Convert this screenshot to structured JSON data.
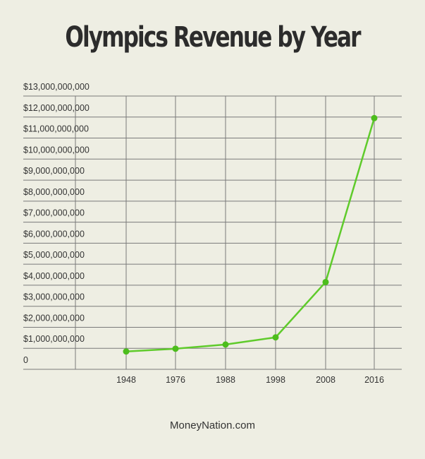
{
  "chart_data": {
    "type": "line",
    "title": "Olympics Revenue by Year",
    "xlabel": "",
    "ylabel": "",
    "categories": [
      "1948",
      "1976",
      "1988",
      "1998",
      "2008",
      "2016"
    ],
    "series": [
      {
        "values": [
          850000000,
          980000000,
          1180000000,
          1520000000,
          4150000000,
          11950000000
        ]
      }
    ],
    "ylim": [
      0,
      13000000000
    ],
    "yticks": [
      "0",
      "$1,000,000,000",
      "$2,000,000,000",
      "$3,000,000,000",
      "$4,000,000,000",
      "$5,000,000,000",
      "$6,000,000,000",
      "$7,000,000,000",
      "$8,000,000,000",
      "$9,000,000,000",
      "$10,000,000,000",
      "$11,000,000,000",
      "$12,000,000,000",
      "$13,000,000,000"
    ],
    "grid": true,
    "legend": "none",
    "line_color": "#5fcb2b",
    "point_color": "#4cbd1c",
    "grid_color": "#7a7a7a"
  },
  "footer": {
    "text": "MoneyNation.com"
  }
}
